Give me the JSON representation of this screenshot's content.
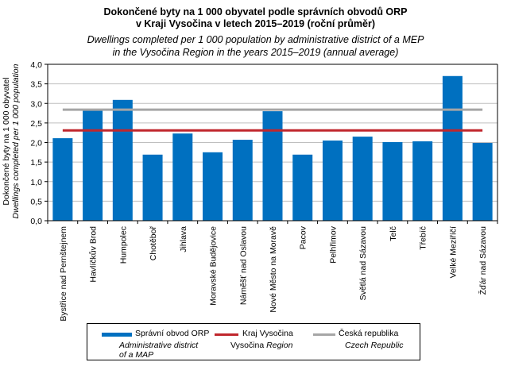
{
  "title": {
    "cz_line1": "Dokončené byty na 1 000 obyvatel podle správních obvodů ORP",
    "cz_line2": "v Kraji Vysočina v letech 2015–2019 (roční průměr)",
    "en_line1": "Dwellings completed per 1 000 population by administrative district of a MEP",
    "en_line2": "in the Vysočina Region in the years 2015–2019 (annual average)"
  },
  "legend": {
    "bar_label": "Správní obvod ORP",
    "bar_label_en_line1": "Administrative district",
    "bar_label_en_line2": "of a MAP",
    "region_label": "Kraj Vysočina",
    "region_label_en_plain": "Vysočina",
    "region_label_en_italic": "Region",
    "country_label": "Česká republika",
    "country_label_en": "Czech Republic"
  },
  "chart_data": {
    "type": "bar",
    "title": "Dokončené byty na 1 000 obyvatel podle správních obvodů ORP v Kraji Vysočina v letech 2015–2019 (roční průměr)",
    "subtitle": "Dwellings completed per 1 000 population by administrative district of a MEP in the Vysočina Region in the years 2015–2019 (annual average)",
    "xlabel": "",
    "ylabel": "Dokončené byty na 1 000 obyvatel",
    "ylabel_en": "Dwellings completed per 1 000 population",
    "ylim": [
      0,
      4
    ],
    "yticks": [
      "0,0",
      "0,5",
      "1,0",
      "1,5",
      "2,0",
      "2,5",
      "3,0",
      "3,5",
      "4,0"
    ],
    "ytick_values": [
      0,
      0.5,
      1,
      1.5,
      2,
      2.5,
      3,
      3.5,
      4
    ],
    "grid": true,
    "legend_position": "bottom",
    "categories": [
      "Bystřice nad Pernštejnem",
      "Havlíčkův Brod",
      "Humpolec",
      "Chotěboř",
      "Jihlava",
      "Moravské Budějovice",
      "Náměšť nad Oslavou",
      "Nové Město na Moravě",
      "Pacov",
      "Pelhřimov",
      "Světlá nad Sázavou",
      "Telč",
      "Třebíč",
      "Velké Meziříčí",
      "Žďár nad Sázavou"
    ],
    "series": [
      {
        "name": "Správní obvod ORP",
        "type": "bar",
        "color": "#0070c0",
        "values": [
          2.11,
          2.82,
          3.09,
          1.69,
          2.23,
          1.75,
          2.07,
          2.8,
          1.69,
          2.05,
          2.15,
          2.01,
          2.03,
          3.7,
          1.99
        ]
      },
      {
        "name": "Kraj Vysočina",
        "type": "line",
        "color": "#c0272d",
        "value": 2.31
      },
      {
        "name": "Česká republika",
        "type": "line",
        "color": "#a6a6a6",
        "value": 2.84
      }
    ]
  }
}
